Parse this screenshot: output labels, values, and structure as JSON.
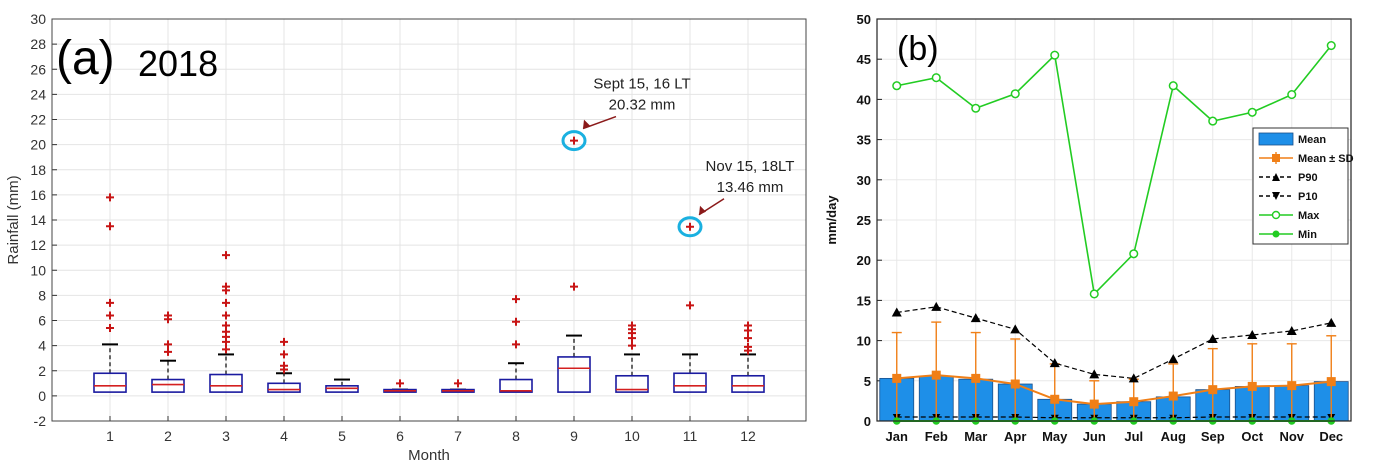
{
  "chart_data": [
    {
      "type": "box",
      "panel_label": "(a)",
      "title": "2018",
      "xlabel": "Month",
      "ylabel": "Rainfall (mm)",
      "ylim": [
        -2,
        30
      ],
      "yticks": [
        -2,
        0,
        2,
        4,
        6,
        8,
        10,
        12,
        14,
        16,
        18,
        20,
        22,
        24,
        26,
        28,
        30
      ],
      "categories": [
        "1",
        "2",
        "3",
        "4",
        "5",
        "6",
        "7",
        "8",
        "9",
        "10",
        "11",
        "12"
      ],
      "grid": true,
      "boxes": [
        {
          "q1": 0.3,
          "median": 0.8,
          "q3": 1.8,
          "whisker_high": 4.1,
          "whisker_low": 0.0
        },
        {
          "q1": 0.3,
          "median": 0.9,
          "q3": 1.3,
          "whisker_high": 2.8,
          "whisker_low": 0.0
        },
        {
          "q1": 0.3,
          "median": 0.8,
          "q3": 1.7,
          "whisker_high": 3.3,
          "whisker_low": 0.0
        },
        {
          "q1": 0.3,
          "median": 0.5,
          "q3": 1.0,
          "whisker_high": 1.8,
          "whisker_low": 0.0
        },
        {
          "q1": 0.3,
          "median": 0.6,
          "q3": 0.8,
          "whisker_high": 1.3,
          "whisker_low": 0.0
        },
        {
          "q1": 0.3,
          "median": 0.4,
          "q3": 0.5,
          "whisker_high": 0.5,
          "whisker_low": 0.0
        },
        {
          "q1": 0.3,
          "median": 0.4,
          "q3": 0.5,
          "whisker_high": 0.5,
          "whisker_low": 0.0
        },
        {
          "q1": 0.3,
          "median": 0.4,
          "q3": 1.3,
          "whisker_high": 2.6,
          "whisker_low": 0.0
        },
        {
          "q1": 0.3,
          "median": 2.2,
          "q3": 3.1,
          "whisker_high": 4.8,
          "whisker_low": 0.0
        },
        {
          "q1": 0.3,
          "median": 0.5,
          "q3": 1.6,
          "whisker_high": 3.3,
          "whisker_low": 0.0
        },
        {
          "q1": 0.3,
          "median": 0.8,
          "q3": 1.8,
          "whisker_high": 3.3,
          "whisker_low": 0.0
        },
        {
          "q1": 0.3,
          "median": 0.8,
          "q3": 1.6,
          "whisker_high": 3.3,
          "whisker_low": 0.0
        }
      ],
      "outliers": [
        [
          5.4,
          6.4,
          7.4,
          13.5,
          15.8
        ],
        [
          3.5,
          4.1,
          6.1,
          6.4
        ],
        [
          3.7,
          4.3,
          4.7,
          5.1,
          5.6,
          6.4,
          7.4,
          8.4,
          8.7,
          11.2
        ],
        [
          2.1,
          2.4,
          3.3,
          4.3
        ],
        [],
        [
          1.0
        ],
        [
          1.0
        ],
        [
          4.1,
          5.9,
          7.7
        ],
        [
          8.7,
          20.32
        ],
        [
          4.0,
          4.6,
          5.0,
          5.3,
          5.6
        ],
        [
          7.2,
          13.46
        ],
        [
          3.6,
          3.9,
          4.6,
          5.2,
          5.6
        ]
      ],
      "annotations": [
        {
          "month": 9,
          "value": 20.32,
          "line1": "Sept 15, 16 LT",
          "line2": "20.32 mm"
        },
        {
          "month": 11,
          "value": 13.46,
          "line1": "Nov 15, 18LT",
          "line2": "13.46 mm"
        }
      ],
      "colors": {
        "box": "#1a1aa0",
        "median": "#d42020",
        "outlier": "#c81414",
        "whisker": "#000000",
        "circle": "#1ab0e0",
        "arrow": "#8b1a1a"
      }
    },
    {
      "type": "bar+line",
      "panel_label": "(b)",
      "ylabel": "mm/day",
      "ylim": [
        0,
        50
      ],
      "yticks": [
        0,
        5,
        10,
        15,
        20,
        25,
        30,
        35,
        40,
        45,
        50
      ],
      "categories": [
        "Jan",
        "Feb",
        "Mar",
        "Apr",
        "May",
        "Jun",
        "Jul",
        "Aug",
        "Sep",
        "Oct",
        "Nov",
        "Dec"
      ],
      "grid": true,
      "legend_position": "right",
      "series": [
        {
          "name": "Mean",
          "kind": "bar",
          "color": "#1e8fe8",
          "values": [
            5.3,
            5.6,
            5.2,
            4.6,
            2.7,
            2.1,
            2.4,
            3.0,
            3.9,
            4.3,
            4.4,
            4.9
          ]
        },
        {
          "name": "Mean ± SD",
          "kind": "errorline",
          "color": "#f07f17",
          "values": [
            5.3,
            5.7,
            5.3,
            4.6,
            2.7,
            2.1,
            2.4,
            3.1,
            3.9,
            4.3,
            4.4,
            4.9
          ],
          "upper": [
            11.0,
            12.3,
            11.0,
            10.2,
            7.1,
            5.0,
            5.2,
            7.1,
            9.0,
            9.6,
            9.6,
            10.6
          ],
          "lower": [
            0.0,
            0.0,
            0.0,
            0.0,
            0.0,
            0.0,
            0.0,
            0.0,
            0.0,
            0.0,
            0.0,
            0.0
          ]
        },
        {
          "name": "P90",
          "kind": "line",
          "style": "dashed",
          "marker": "triangle-up",
          "color": "#000000",
          "values": [
            13.5,
            14.2,
            12.8,
            11.4,
            7.2,
            5.8,
            5.3,
            7.7,
            10.2,
            10.7,
            11.2,
            12.2
          ]
        },
        {
          "name": "P10",
          "kind": "line",
          "style": "dashed",
          "marker": "triangle-down",
          "color": "#000000",
          "values": [
            0.5,
            0.5,
            0.5,
            0.5,
            0.4,
            0.4,
            0.4,
            0.4,
            0.5,
            0.5,
            0.5,
            0.5
          ]
        },
        {
          "name": "Max",
          "kind": "line",
          "marker": "circle-open",
          "color": "#22cc22",
          "values": [
            41.7,
            42.7,
            38.9,
            40.7,
            45.5,
            15.8,
            20.8,
            41.7,
            37.3,
            38.4,
            40.6,
            46.7
          ]
        },
        {
          "name": "Min",
          "kind": "line",
          "marker": "circle-filled",
          "color": "#22cc22",
          "values": [
            0,
            0,
            0,
            0,
            0,
            0,
            0,
            0,
            0,
            0,
            0,
            0
          ]
        }
      ]
    }
  ]
}
